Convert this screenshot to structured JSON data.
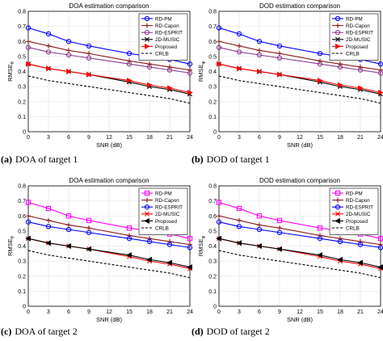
{
  "chart_data": [
    {
      "type": "line",
      "title": "DOA estimation comparison",
      "caption_tag": "(a)",
      "caption_text": "DOA of target 1",
      "xlabel": "SNR (dB)",
      "ylabel": "RMSE",
      "ylabel_subscript": "θ",
      "xlim": [
        0,
        24
      ],
      "ylim": [
        0,
        0.8
      ],
      "x": [
        0,
        3,
        6,
        9,
        15,
        18,
        21,
        24
      ],
      "xticks": [
        "0",
        "3",
        "6",
        "9",
        "12",
        "15",
        "18",
        "21",
        "24"
      ],
      "yticks": [
        "0",
        "0.1",
        "0.2",
        "0.3",
        "0.4",
        "0.5",
        "0.6",
        "0.7",
        "0.8"
      ],
      "grid": true,
      "legend_position": "top-right",
      "series": [
        {
          "name": "RD-PM",
          "color": "#0000ff",
          "marker": "circle",
          "dash": "solid",
          "values": [
            0.69,
            0.65,
            0.6,
            0.57,
            0.52,
            0.5,
            0.48,
            0.45
          ]
        },
        {
          "name": "RD-Capon",
          "color": "#8b1a1a",
          "marker": "plus",
          "dash": "solid",
          "values": [
            0.6,
            0.57,
            0.54,
            0.52,
            0.47,
            0.45,
            0.43,
            0.41
          ]
        },
        {
          "name": "RD-ESPRIT",
          "color": "#8b3a8b",
          "marker": "circle",
          "dash": "solid",
          "values": [
            0.56,
            0.53,
            0.51,
            0.49,
            0.45,
            0.43,
            0.41,
            0.39
          ]
        },
        {
          "name": "2D-MUSIC",
          "color": "#000000",
          "marker": "x",
          "dash": "solid",
          "values": [
            0.45,
            0.42,
            0.4,
            0.38,
            0.33,
            0.3,
            0.28,
            0.25
          ]
        },
        {
          "name": "Proposed",
          "color": "#ff0000",
          "marker": "triangle-right",
          "dash": "solid",
          "values": [
            0.45,
            0.42,
            0.4,
            0.38,
            0.34,
            0.31,
            0.29,
            0.26
          ]
        },
        {
          "name": "CRLB",
          "color": "#000000",
          "marker": "none",
          "dash": "dashed",
          "values": [
            0.37,
            0.34,
            0.32,
            0.3,
            0.26,
            0.24,
            0.22,
            0.19
          ]
        }
      ]
    },
    {
      "type": "line",
      "title": "DOD estimation comparison",
      "caption_tag": "(b)",
      "caption_text": "DOD of target 1",
      "xlabel": "SNR (dB)",
      "ylabel": "RMSE",
      "ylabel_subscript": "φ",
      "xlim": [
        0,
        24
      ],
      "ylim": [
        0,
        0.8
      ],
      "x": [
        0,
        3,
        6,
        9,
        15,
        18,
        21,
        24
      ],
      "xticks": [
        "0",
        "3",
        "6",
        "9",
        "12",
        "15",
        "18",
        "21",
        "24"
      ],
      "yticks": [
        "0",
        "0.1",
        "0.2",
        "0.3",
        "0.4",
        "0.5",
        "0.6",
        "0.7",
        "0.8"
      ],
      "grid": true,
      "legend_position": "top-right",
      "series": [
        {
          "name": "RD-PM",
          "color": "#0000ff",
          "marker": "circle",
          "dash": "solid",
          "values": [
            0.69,
            0.65,
            0.6,
            0.57,
            0.52,
            0.5,
            0.48,
            0.45
          ]
        },
        {
          "name": "RD-Capon",
          "color": "#8b1a1a",
          "marker": "plus",
          "dash": "solid",
          "values": [
            0.6,
            0.57,
            0.54,
            0.52,
            0.47,
            0.45,
            0.43,
            0.41
          ]
        },
        {
          "name": "RD-ESPRIT",
          "color": "#8b3a8b",
          "marker": "circle",
          "dash": "solid",
          "values": [
            0.56,
            0.53,
            0.51,
            0.49,
            0.45,
            0.43,
            0.41,
            0.39
          ]
        },
        {
          "name": "2D-MUSIC",
          "color": "#000000",
          "marker": "x",
          "dash": "solid",
          "values": [
            0.45,
            0.42,
            0.4,
            0.38,
            0.33,
            0.3,
            0.28,
            0.25
          ]
        },
        {
          "name": "Proposed",
          "color": "#ff0000",
          "marker": "triangle-right",
          "dash": "solid",
          "values": [
            0.45,
            0.42,
            0.4,
            0.38,
            0.34,
            0.31,
            0.29,
            0.26
          ]
        },
        {
          "name": "CRLB",
          "color": "#000000",
          "marker": "none",
          "dash": "dashed",
          "values": [
            0.37,
            0.34,
            0.32,
            0.3,
            0.26,
            0.24,
            0.22,
            0.19
          ]
        }
      ]
    },
    {
      "type": "line",
      "title": "DOA estimation comparison",
      "caption_tag": "(c)",
      "caption_text": "DOA of target 2",
      "xlabel": "SNR (dB)",
      "ylabel": "RMSE",
      "ylabel_subscript": "θ",
      "xlim": [
        0,
        24
      ],
      "ylim": [
        0,
        0.8
      ],
      "x": [
        0,
        3,
        6,
        9,
        15,
        18,
        21,
        24
      ],
      "xticks": [
        "0",
        "3",
        "6",
        "9",
        "12",
        "15",
        "18",
        "21",
        "24"
      ],
      "yticks": [
        "0",
        "0.1",
        "0.2",
        "0.3",
        "0.4",
        "0.5",
        "0.6",
        "0.7",
        "0.8"
      ],
      "grid": true,
      "legend_position": "top-right",
      "series": [
        {
          "name": "RD-PM",
          "color": "#ff00ff",
          "marker": "square",
          "dash": "solid",
          "values": [
            0.69,
            0.65,
            0.6,
            0.57,
            0.52,
            0.5,
            0.48,
            0.45
          ]
        },
        {
          "name": "RD-Capon",
          "color": "#8b1a1a",
          "marker": "plus",
          "dash": "solid",
          "values": [
            0.6,
            0.57,
            0.54,
            0.52,
            0.47,
            0.45,
            0.43,
            0.41
          ]
        },
        {
          "name": "RD-ESPRIT",
          "color": "#0000ff",
          "marker": "circle",
          "dash": "solid",
          "values": [
            0.56,
            0.53,
            0.51,
            0.49,
            0.45,
            0.43,
            0.41,
            0.39
          ]
        },
        {
          "name": "2D-MUSIC",
          "color": "#ff0000",
          "marker": "x",
          "dash": "solid",
          "values": [
            0.45,
            0.42,
            0.4,
            0.38,
            0.33,
            0.3,
            0.28,
            0.25
          ]
        },
        {
          "name": "Proposed",
          "color": "#000000",
          "marker": "triangle-left",
          "dash": "solid",
          "values": [
            0.45,
            0.42,
            0.4,
            0.38,
            0.34,
            0.31,
            0.29,
            0.26
          ]
        },
        {
          "name": "CRLB",
          "color": "#000000",
          "marker": "none",
          "dash": "dashed",
          "values": [
            0.37,
            0.34,
            0.32,
            0.3,
            0.26,
            0.24,
            0.22,
            0.19
          ]
        }
      ]
    },
    {
      "type": "line",
      "title": "DOD estimation comparison",
      "caption_tag": "(d)",
      "caption_text": "DOD of target 2",
      "xlabel": "SNR (dB)",
      "ylabel": "RMSE",
      "ylabel_subscript": "φ",
      "xlim": [
        0,
        24
      ],
      "ylim": [
        0,
        0.8
      ],
      "x": [
        0,
        3,
        6,
        9,
        15,
        18,
        21,
        24
      ],
      "xticks": [
        "0",
        "3",
        "6",
        "9",
        "12",
        "15",
        "18",
        "21",
        "24"
      ],
      "yticks": [
        "0",
        "0.1",
        "0.2",
        "0.3",
        "0.4",
        "0.5",
        "0.6",
        "0.7",
        "0.8"
      ],
      "grid": true,
      "legend_position": "top-right",
      "series": [
        {
          "name": "RD-PM",
          "color": "#ff00ff",
          "marker": "square",
          "dash": "solid",
          "values": [
            0.69,
            0.65,
            0.6,
            0.57,
            0.52,
            0.5,
            0.48,
            0.45
          ]
        },
        {
          "name": "RD-Capon",
          "color": "#8b1a1a",
          "marker": "plus",
          "dash": "solid",
          "values": [
            0.6,
            0.57,
            0.54,
            0.52,
            0.47,
            0.45,
            0.43,
            0.41
          ]
        },
        {
          "name": "RD-ESPRIT",
          "color": "#0000ff",
          "marker": "circle",
          "dash": "solid",
          "values": [
            0.56,
            0.53,
            0.51,
            0.49,
            0.45,
            0.43,
            0.41,
            0.39
          ]
        },
        {
          "name": "2D-MUSIC",
          "color": "#ff0000",
          "marker": "x",
          "dash": "solid",
          "values": [
            0.45,
            0.42,
            0.4,
            0.38,
            0.33,
            0.3,
            0.28,
            0.25
          ]
        },
        {
          "name": "Proposed",
          "color": "#000000",
          "marker": "triangle-left",
          "dash": "solid",
          "values": [
            0.45,
            0.42,
            0.4,
            0.38,
            0.34,
            0.31,
            0.29,
            0.26
          ]
        },
        {
          "name": "CRLB",
          "color": "#000000",
          "marker": "none",
          "dash": "dashed",
          "values": [
            0.37,
            0.34,
            0.32,
            0.3,
            0.26,
            0.24,
            0.22,
            0.19
          ]
        }
      ]
    }
  ]
}
